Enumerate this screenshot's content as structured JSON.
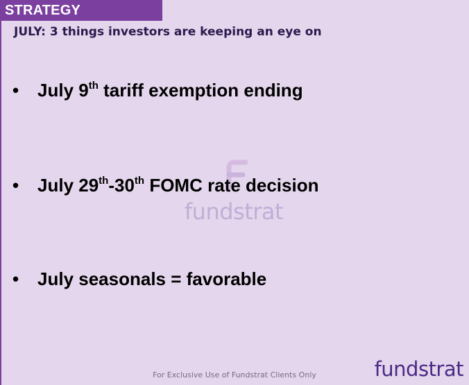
{
  "header": {
    "section_tag": "STRATEGY",
    "subtitle": "JULY: 3 things investors are keeping an eye on"
  },
  "bullets": [
    {
      "marker": "•",
      "pre": "July 9",
      "sup": "th",
      "post": " tariff exemption ending"
    },
    {
      "marker": "•",
      "pre": "July 29",
      "sup1": "th",
      "mid": "-30",
      "sup2": "th",
      "post": " FOMC rate decision"
    },
    {
      "marker": "•",
      "text": "July seasonals = favorable"
    }
  ],
  "watermark": {
    "text": "fundstrat",
    "icon": "fundstrat-f-icon"
  },
  "footer": {
    "text": "For Exclusive Use of Fundstrat Clients Only"
  },
  "logo": {
    "text": "fundstrat"
  },
  "colors": {
    "accent": "#7b3fa0",
    "background": "#e4d6ec",
    "logo": "#4b2a86"
  }
}
